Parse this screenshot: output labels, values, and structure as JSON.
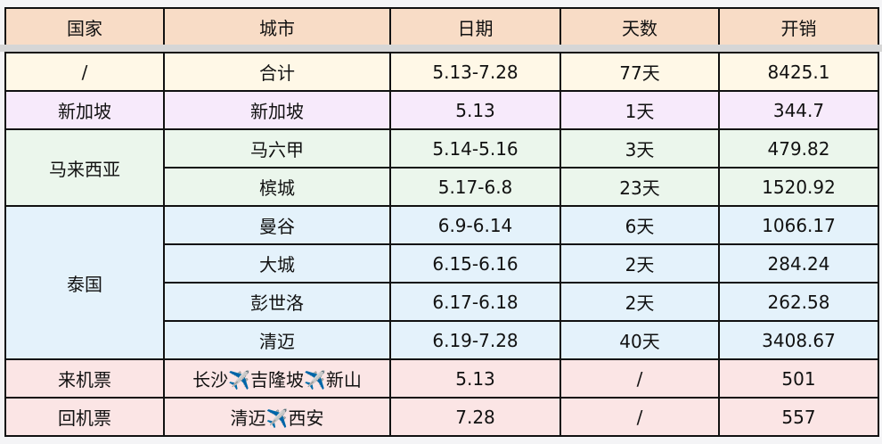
{
  "header": [
    "国家",
    "城市",
    "日期",
    "天数",
    "开销"
  ],
  "rows": [
    {
      "country": "/",
      "city": "合计",
      "date": "5.13-7.28",
      "days": "77天",
      "cost": "8425.1"
    },
    {
      "country": "新加坡",
      "city": "新加坡",
      "date": "5.13",
      "days": "1天",
      "cost": "344.7"
    },
    {
      "country": "马来西亚",
      "city": "马六甲",
      "date": "5.14-5.16",
      "days": "3天",
      "cost": "479.82"
    },
    {
      "city": "槟城",
      "date": "5.17-6.8",
      "days": "23天",
      "cost": "1520.92"
    },
    {
      "country": "泰国",
      "city": "曼谷",
      "date": "6.9-6.14",
      "days": "6天",
      "cost": "1066.17"
    },
    {
      "city": "大城",
      "date": "6.15-6.16",
      "days": "2天",
      "cost": "284.24"
    },
    {
      "city": "彭世洛",
      "date": "6.17-6.18",
      "days": "2天",
      "cost": "262.58"
    },
    {
      "city": "清迈",
      "date": "6.19-7.28",
      "days": "40天",
      "cost": "3408.67"
    },
    {
      "country": "来机票",
      "city": "长沙✈️吉隆坡✈️新山",
      "date": "5.13",
      "days": "/",
      "cost": "501"
    },
    {
      "country": "回机票",
      "city": "清迈✈️西安",
      "date": "7.28",
      "days": "/",
      "cost": "557"
    }
  ]
}
